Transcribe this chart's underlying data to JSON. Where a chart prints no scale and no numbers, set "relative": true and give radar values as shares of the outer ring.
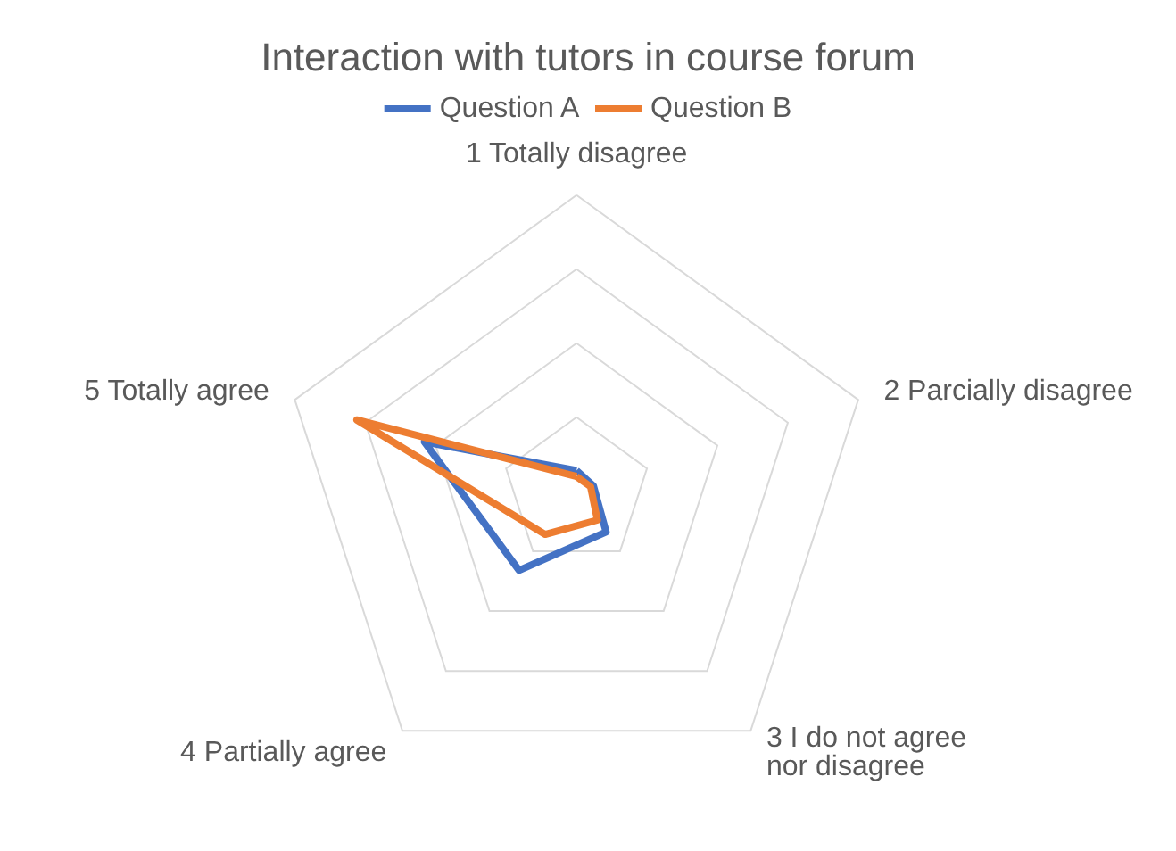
{
  "chart_data": {
    "type": "radar",
    "title": "Interaction with tutors in course forum",
    "relative": true,
    "categories": [
      "1 Totally disagree",
      "2 Parcially disagree",
      "3 I do not agree nor disagree",
      "4 Partially agree",
      "5 Totally agree"
    ],
    "series": [
      {
        "name": "Question A",
        "color": "#4472c4",
        "values": [
          0.07,
          0.06,
          0.17,
          0.33,
          0.54
        ]
      },
      {
        "name": "Question B",
        "color": "#ed7d31",
        "values": [
          0.05,
          0.05,
          0.12,
          0.18,
          0.78
        ]
      }
    ],
    "legend": "top",
    "grid": true,
    "marker": "none",
    "line_style": "solid"
  }
}
